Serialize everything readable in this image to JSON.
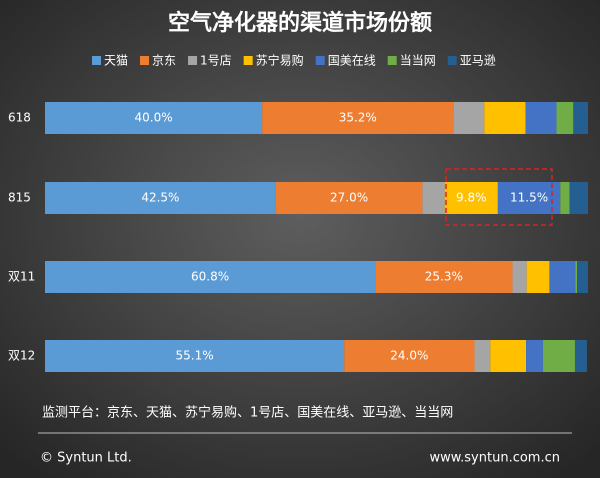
{
  "chart_data": {
    "type": "stacked-barh",
    "title": "空气净化器的渠道市场份额",
    "categories": [
      "618",
      "815",
      "双11",
      "双12"
    ],
    "series": [
      {
        "name": "天猫",
        "color": "#5b9bd5",
        "values": [
          40.0,
          42.5,
          60.8,
          55.1
        ],
        "value_labels": [
          "40.0%",
          "42.5%",
          "60.8%",
          "55.1%"
        ]
      },
      {
        "name": "京东",
        "color": "#ed7d31",
        "values": [
          35.2,
          27.0,
          25.3,
          24.0
        ],
        "value_labels": [
          "35.2%",
          "27.0%",
          "25.3%",
          "24.0%"
        ]
      },
      {
        "name": "1号店",
        "color": "#a5a5a5",
        "values": [
          5.7,
          4.1,
          2.6,
          2.9
        ]
      },
      {
        "name": "苏宁易购",
        "color": "#ffc000",
        "values": [
          7.6,
          9.8,
          4.2,
          6.6
        ],
        "value_labels": [
          null,
          "9.8%",
          null,
          null
        ]
      },
      {
        "name": "国美在线",
        "color": "#4472c4",
        "values": [
          5.7,
          11.5,
          4.8,
          3.1
        ],
        "value_labels": [
          null,
          "11.5%",
          null,
          null
        ]
      },
      {
        "name": "当当网",
        "color": "#70ad47",
        "values": [
          3.1,
          1.7,
          0.3,
          5.9
        ]
      },
      {
        "name": "亚马逊",
        "color": "#255e91",
        "values": [
          2.7,
          3.4,
          2.0,
          2.2
        ]
      }
    ],
    "xlim": [
      0,
      100
    ],
    "note": "监测平台：京东、天猫、苏宁易购、1号店、国美在线、亚马逊、当当网",
    "footer_left": "© Syntun Ltd.",
    "footer_right": "www.syntun.com.cn"
  }
}
